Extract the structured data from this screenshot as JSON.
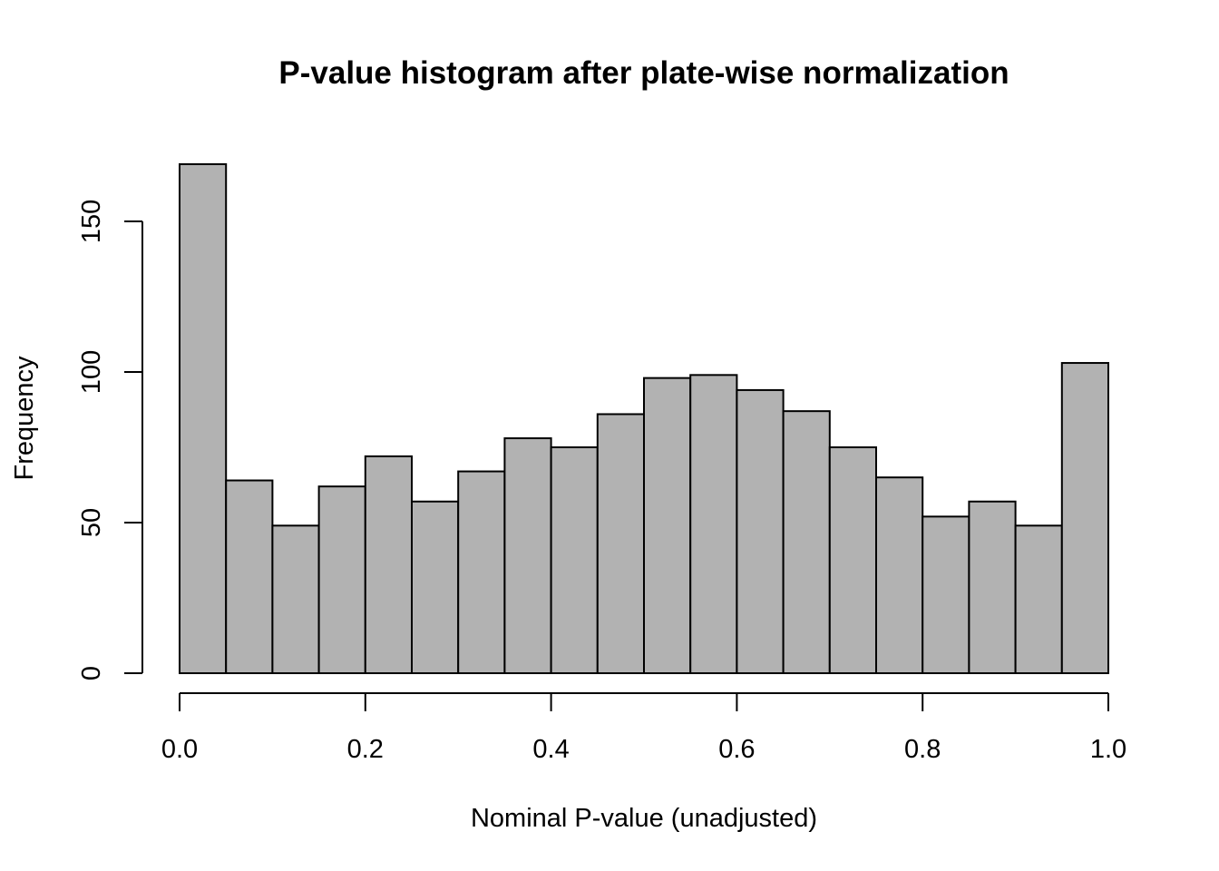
{
  "chart_data": {
    "type": "bar",
    "title": "P-value histogram after plate-wise normalization",
    "xlabel": "Nominal P-value (unadjusted)",
    "ylabel": "Frequency",
    "bin_width": 0.05,
    "bins": [
      {
        "x0": 0.0,
        "x1": 0.05,
        "value": 169
      },
      {
        "x0": 0.05,
        "x1": 0.1,
        "value": 64
      },
      {
        "x0": 0.1,
        "x1": 0.15,
        "value": 49
      },
      {
        "x0": 0.15,
        "x1": 0.2,
        "value": 62
      },
      {
        "x0": 0.2,
        "x1": 0.25,
        "value": 72
      },
      {
        "x0": 0.25,
        "x1": 0.3,
        "value": 57
      },
      {
        "x0": 0.3,
        "x1": 0.35,
        "value": 67
      },
      {
        "x0": 0.35,
        "x1": 0.4,
        "value": 78
      },
      {
        "x0": 0.4,
        "x1": 0.45,
        "value": 75
      },
      {
        "x0": 0.45,
        "x1": 0.5,
        "value": 86
      },
      {
        "x0": 0.5,
        "x1": 0.55,
        "value": 98
      },
      {
        "x0": 0.55,
        "x1": 0.6,
        "value": 99
      },
      {
        "x0": 0.6,
        "x1": 0.65,
        "value": 94
      },
      {
        "x0": 0.65,
        "x1": 0.7,
        "value": 87
      },
      {
        "x0": 0.7,
        "x1": 0.75,
        "value": 75
      },
      {
        "x0": 0.75,
        "x1": 0.8,
        "value": 65
      },
      {
        "x0": 0.8,
        "x1": 0.85,
        "value": 52
      },
      {
        "x0": 0.85,
        "x1": 0.9,
        "value": 57
      },
      {
        "x0": 0.9,
        "x1": 0.95,
        "value": 49
      },
      {
        "x0": 0.95,
        "x1": 1.0,
        "value": 103
      }
    ],
    "xlim": [
      0,
      1
    ],
    "ylim": [
      0,
      169
    ],
    "x_ticks": [
      0,
      0.2,
      0.4,
      0.6,
      0.8,
      1
    ],
    "x_tick_labels": [
      "0.0",
      "0.2",
      "0.4",
      "0.6",
      "0.8",
      "1.0"
    ],
    "y_ticks": [
      0,
      50,
      100,
      150
    ],
    "y_tick_labels": [
      "0",
      "50",
      "100",
      "150"
    ],
    "grid": false,
    "bar_color": "#b2b2b2",
    "bar_edge_color": "#000000"
  }
}
